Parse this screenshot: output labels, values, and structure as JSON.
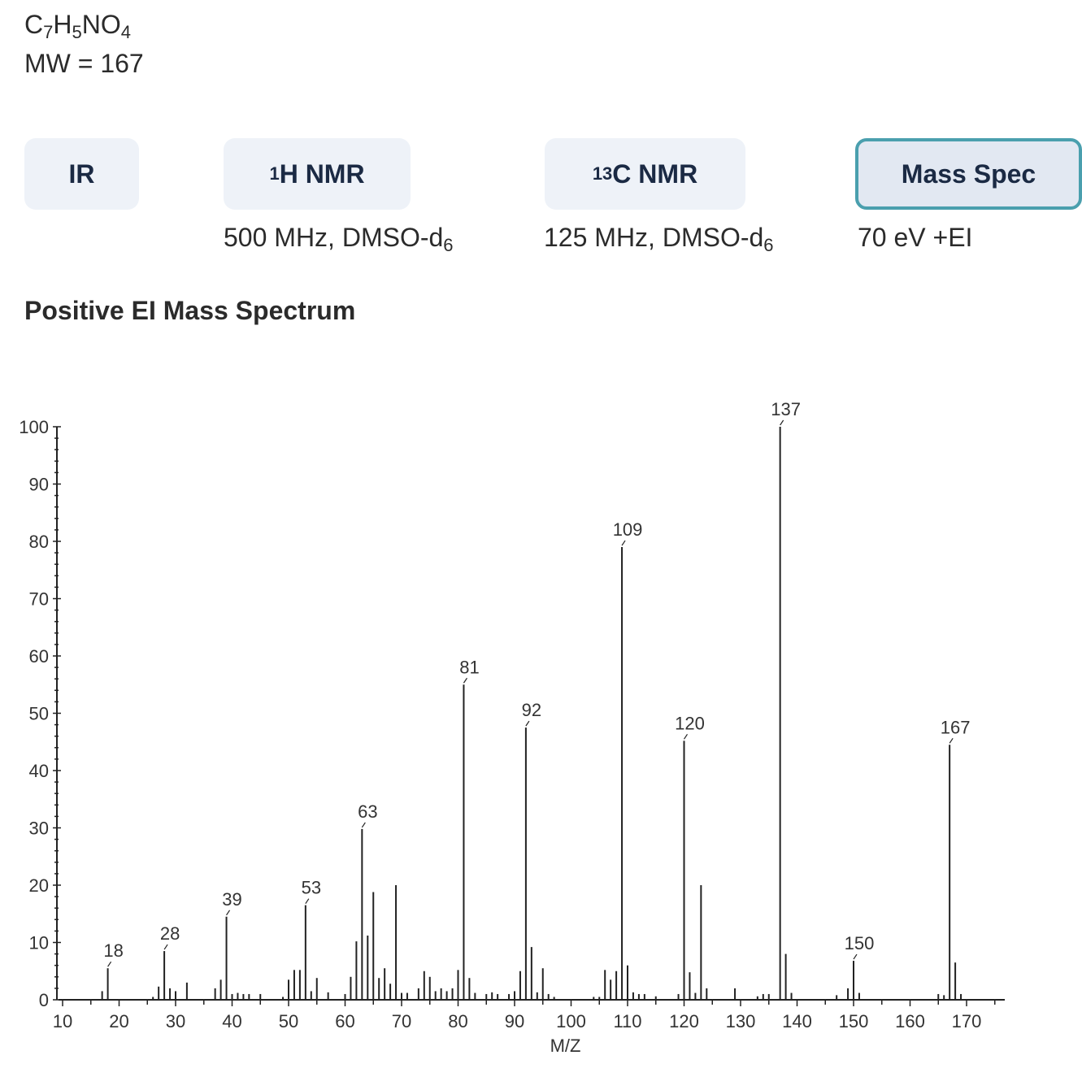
{
  "compound": {
    "formula": {
      "c": "C",
      "c_n": "7",
      "h": "H",
      "h_n": "5",
      "no": "NO",
      "o_n": "4"
    },
    "mw": "MW = 167"
  },
  "tabs": [
    {
      "label": "IR",
      "sup": "",
      "active": false
    },
    {
      "label": "H NMR",
      "sup": "1",
      "active": false
    },
    {
      "label": "C NMR",
      "sup": "13",
      "active": false
    },
    {
      "label": "Mass Spec",
      "sup": "",
      "active": true
    }
  ],
  "conditions": {
    "h_nmr": {
      "text": "500 MHz, DMSO-d",
      "sub": "6"
    },
    "c_nmr": {
      "text": "125 MHz, DMSO-d",
      "sub": "6"
    },
    "ms": {
      "text": "70 eV +EI"
    }
  },
  "section_title": "Positive EI Mass Spectrum",
  "chart_data": {
    "type": "bar",
    "xlabel": "M/Z",
    "ylabel": "",
    "xlim": [
      10,
      175
    ],
    "ylim": [
      0,
      100
    ],
    "xticks": [
      10,
      20,
      30,
      40,
      50,
      60,
      70,
      80,
      90,
      100,
      110,
      120,
      130,
      140,
      150,
      160,
      170
    ],
    "yticks": [
      0,
      10,
      20,
      30,
      40,
      50,
      60,
      70,
      80,
      90,
      100
    ],
    "peaks": [
      {
        "mz": 17,
        "i": 1.5
      },
      {
        "mz": 18,
        "i": 5.5
      },
      {
        "mz": 26,
        "i": 0.5
      },
      {
        "mz": 27,
        "i": 2.3
      },
      {
        "mz": 28,
        "i": 8.5
      },
      {
        "mz": 29,
        "i": 2.0
      },
      {
        "mz": 30,
        "i": 1.5
      },
      {
        "mz": 32,
        "i": 3.0
      },
      {
        "mz": 37,
        "i": 2.0
      },
      {
        "mz": 38,
        "i": 3.5
      },
      {
        "mz": 39,
        "i": 14.5
      },
      {
        "mz": 40,
        "i": 1.0
      },
      {
        "mz": 41,
        "i": 1.2
      },
      {
        "mz": 42,
        "i": 1.0
      },
      {
        "mz": 43,
        "i": 1.0
      },
      {
        "mz": 45,
        "i": 1.0
      },
      {
        "mz": 49,
        "i": 0.5
      },
      {
        "mz": 50,
        "i": 3.5
      },
      {
        "mz": 51,
        "i": 5.2
      },
      {
        "mz": 52,
        "i": 5.2
      },
      {
        "mz": 53,
        "i": 16.5
      },
      {
        "mz": 54,
        "i": 1.5
      },
      {
        "mz": 55,
        "i": 3.8
      },
      {
        "mz": 57,
        "i": 1.3
      },
      {
        "mz": 60,
        "i": 1.0
      },
      {
        "mz": 61,
        "i": 4.0
      },
      {
        "mz": 62,
        "i": 10.2
      },
      {
        "mz": 63,
        "i": 29.8
      },
      {
        "mz": 64,
        "i": 11.2
      },
      {
        "mz": 65,
        "i": 18.8
      },
      {
        "mz": 66,
        "i": 3.8
      },
      {
        "mz": 67,
        "i": 5.5
      },
      {
        "mz": 68,
        "i": 2.8
      },
      {
        "mz": 69,
        "i": 20.0
      },
      {
        "mz": 70,
        "i": 1.2
      },
      {
        "mz": 71,
        "i": 1.2
      },
      {
        "mz": 73,
        "i": 2.0
      },
      {
        "mz": 74,
        "i": 5.0
      },
      {
        "mz": 75,
        "i": 4.0
      },
      {
        "mz": 76,
        "i": 1.5
      },
      {
        "mz": 77,
        "i": 2.0
      },
      {
        "mz": 78,
        "i": 1.5
      },
      {
        "mz": 79,
        "i": 2.0
      },
      {
        "mz": 80,
        "i": 5.2
      },
      {
        "mz": 81,
        "i": 55.0
      },
      {
        "mz": 82,
        "i": 3.8
      },
      {
        "mz": 83,
        "i": 1.2
      },
      {
        "mz": 85,
        "i": 1.0
      },
      {
        "mz": 86,
        "i": 1.3
      },
      {
        "mz": 87,
        "i": 1.0
      },
      {
        "mz": 89,
        "i": 1.0
      },
      {
        "mz": 90,
        "i": 1.5
      },
      {
        "mz": 91,
        "i": 5.0
      },
      {
        "mz": 92,
        "i": 47.5
      },
      {
        "mz": 93,
        "i": 9.2
      },
      {
        "mz": 94,
        "i": 1.3
      },
      {
        "mz": 95,
        "i": 5.5
      },
      {
        "mz": 96,
        "i": 1.0
      },
      {
        "mz": 97,
        "i": 0.5
      },
      {
        "mz": 104,
        "i": 0.5
      },
      {
        "mz": 105,
        "i": 0.5
      },
      {
        "mz": 106,
        "i": 5.2
      },
      {
        "mz": 107,
        "i": 3.5
      },
      {
        "mz": 108,
        "i": 5.0
      },
      {
        "mz": 109,
        "i": 79.0
      },
      {
        "mz": 110,
        "i": 6.0
      },
      {
        "mz": 111,
        "i": 1.3
      },
      {
        "mz": 112,
        "i": 1.0
      },
      {
        "mz": 113,
        "i": 1.0
      },
      {
        "mz": 115,
        "i": 0.6
      },
      {
        "mz": 119,
        "i": 1.0
      },
      {
        "mz": 120,
        "i": 45.2
      },
      {
        "mz": 121,
        "i": 4.8
      },
      {
        "mz": 122,
        "i": 1.2
      },
      {
        "mz": 123,
        "i": 20.0
      },
      {
        "mz": 124,
        "i": 2.0
      },
      {
        "mz": 129,
        "i": 2.0
      },
      {
        "mz": 133,
        "i": 0.6
      },
      {
        "mz": 134,
        "i": 1.0
      },
      {
        "mz": 135,
        "i": 1.0
      },
      {
        "mz": 137,
        "i": 100.0
      },
      {
        "mz": 138,
        "i": 8.0
      },
      {
        "mz": 139,
        "i": 1.2
      },
      {
        "mz": 147,
        "i": 0.8
      },
      {
        "mz": 149,
        "i": 2.0
      },
      {
        "mz": 150,
        "i": 6.8
      },
      {
        "mz": 151,
        "i": 1.2
      },
      {
        "mz": 165,
        "i": 1.0
      },
      {
        "mz": 166,
        "i": 0.8
      },
      {
        "mz": 167,
        "i": 44.5
      },
      {
        "mz": 168,
        "i": 6.5
      },
      {
        "mz": 169,
        "i": 1.0
      }
    ],
    "labeled_peaks": [
      {
        "mz": 18,
        "i": 5.5,
        "label": "18"
      },
      {
        "mz": 28,
        "i": 8.5,
        "label": "28"
      },
      {
        "mz": 39,
        "i": 14.5,
        "label": "39"
      },
      {
        "mz": 53,
        "i": 16.5,
        "label": "53"
      },
      {
        "mz": 63,
        "i": 29.8,
        "label": "63"
      },
      {
        "mz": 81,
        "i": 55.0,
        "label": "81"
      },
      {
        "mz": 92,
        "i": 47.5,
        "label": "92"
      },
      {
        "mz": 109,
        "i": 79.0,
        "label": "109"
      },
      {
        "mz": 120,
        "i": 45.2,
        "label": "120"
      },
      {
        "mz": 137,
        "i": 100.0,
        "label": "137"
      },
      {
        "mz": 150,
        "i": 6.8,
        "label": "150"
      },
      {
        "mz": 167,
        "i": 44.5,
        "label": "167"
      }
    ]
  }
}
